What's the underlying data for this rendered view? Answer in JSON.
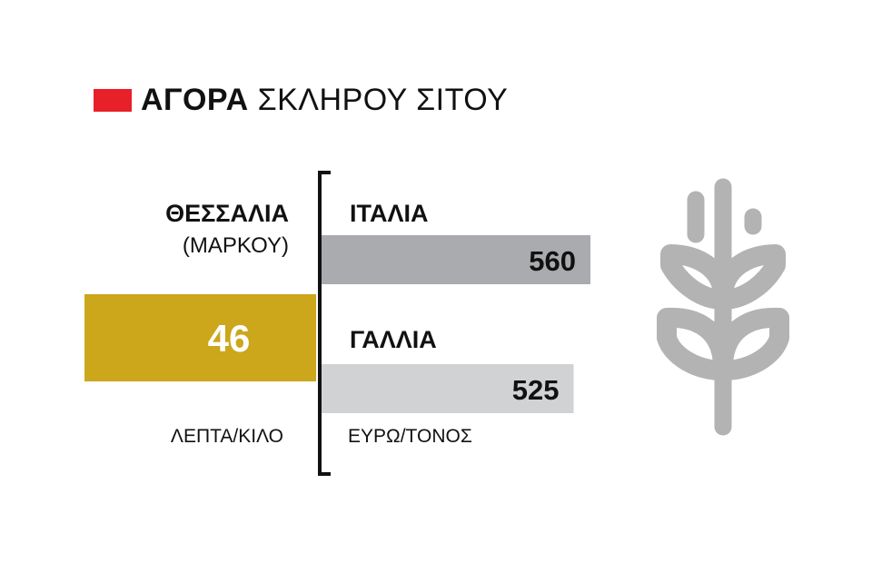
{
  "title": {
    "bold": "ΑΓΟΡΑ",
    "light": "ΣΚΛΗΡΟΥ ΣΙΤΟΥ",
    "swatch_color": "#e8202a"
  },
  "left_panel": {
    "region": "ΘΕΣΣΑΛΙΑ",
    "subregion": "(ΜΑΡΚΟΥ)",
    "unit": "ΛΕΠΤΑ/ΚΙΛΟ"
  },
  "right_panel": {
    "unit": "ΕΥΡΩ/ΤΟΝΟΣ"
  },
  "chart_data": [
    {
      "type": "bar",
      "categories": [
        "ΘΕΣΣΑΛΙΑ (ΜΑΡΚΟΥ)"
      ],
      "values": [
        46
      ],
      "unit": "ΛΕΠΤΑ/ΚΙΛΟ",
      "colors": [
        "#cca61b"
      ]
    },
    {
      "type": "bar",
      "categories": [
        "ΙΤΑΛΙΑ",
        "ΓΑΛΛΙΑ"
      ],
      "values": [
        560,
        525
      ],
      "unit": "ΕΥΡΩ/ΤΟΝΟΣ",
      "colors": [
        "#a9abae",
        "#d1d2d4"
      ]
    }
  ],
  "icon": {
    "name": "wheat-icon",
    "color": "#b3b3b3"
  }
}
